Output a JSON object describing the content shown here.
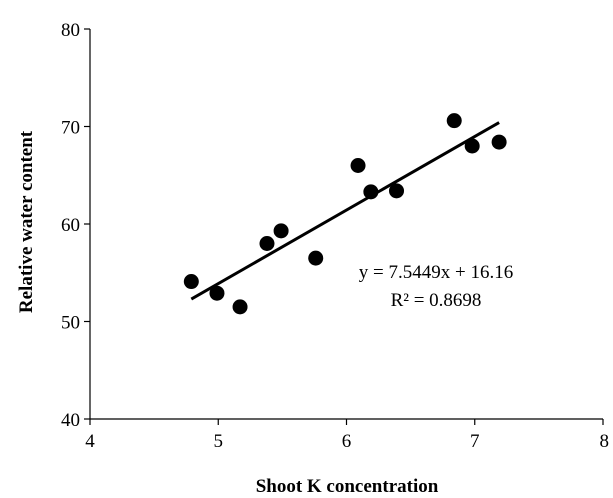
{
  "chart_data": {
    "type": "scatter",
    "title": "",
    "xlabel": "Shoot K concentration",
    "ylabel": "Relative water content",
    "xlim": [
      4,
      8
    ],
    "ylim": [
      40,
      80
    ],
    "x_ticks": [
      "4",
      "5",
      "6",
      "7",
      "8"
    ],
    "y_ticks": [
      "40",
      "50",
      "60",
      "70",
      "80"
    ],
    "grid": false,
    "legend": "none",
    "points": [
      {
        "x": 4.79,
        "y": 54.1
      },
      {
        "x": 4.99,
        "y": 52.9
      },
      {
        "x": 5.17,
        "y": 51.5
      },
      {
        "x": 5.38,
        "y": 58.0
      },
      {
        "x": 5.49,
        "y": 59.3
      },
      {
        "x": 5.76,
        "y": 56.5
      },
      {
        "x": 6.09,
        "y": 66.0
      },
      {
        "x": 6.19,
        "y": 63.3
      },
      {
        "x": 6.39,
        "y": 63.4
      },
      {
        "x": 6.84,
        "y": 70.6
      },
      {
        "x": 6.98,
        "y": 68.0
      },
      {
        "x": 7.19,
        "y": 68.4
      }
    ],
    "trendline": {
      "slope": 7.5449,
      "intercept": 16.16,
      "x_start": 4.79,
      "x_end": 7.19
    },
    "equation_text": "y = 7.5449x + 16.16",
    "r2_text": "R² = 0.8698",
    "colors": {
      "marker": "#000000",
      "line": "#000000",
      "axis": "#000000"
    }
  }
}
